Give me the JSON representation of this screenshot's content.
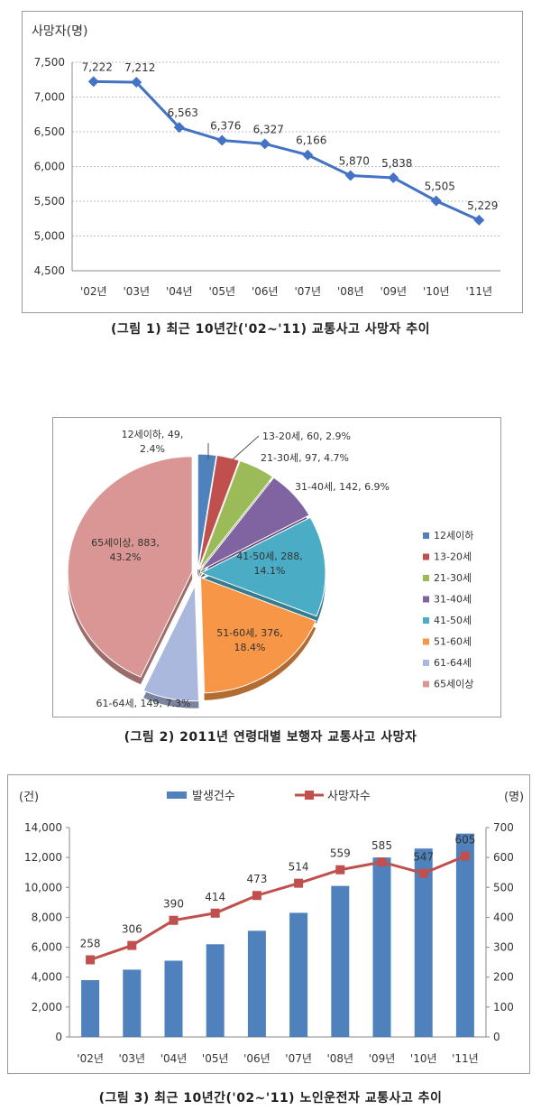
{
  "charts": {
    "fatalities_trend": {
      "caption": "(그림 1)  최근 10년간('02~'11) 교통사고 사망자 추이",
      "unit_label": "사망자(명)"
    },
    "pedestrian_by_age": {
      "caption": "(그림 2)  2011년 연령대별 보행자 교통사고 사망자"
    },
    "elderly_driver": {
      "caption": "(그림 3)  최근 10년간('02~'11) 노인운전자 교통사고 추이",
      "left_unit": "(건)",
      "right_unit": "(명)"
    }
  },
  "colors": {
    "line1": "#4472c4",
    "bar": "#4f81bd",
    "line3": "#c0504d",
    "grid": "#bfbfbf"
  },
  "chart_data": [
    {
      "type": "line",
      "title": "",
      "ylabel": "사망자(명)",
      "categories": [
        "'02년",
        "'03년",
        "'04년",
        "'05년",
        "'06년",
        "'07년",
        "'08년",
        "'09년",
        "'10년",
        "'11년"
      ],
      "values": [
        7222,
        7212,
        6563,
        6376,
        6327,
        6166,
        5870,
        5838,
        5505,
        5229
      ],
      "data_labels": [
        "7,222",
        "7,212",
        "6,563",
        "6,376",
        "6,327",
        "6,166",
        "5,870",
        "5,838",
        "5,505",
        "5,229"
      ],
      "ylim": [
        4500,
        7500
      ],
      "yticks": [
        "4,500",
        "5,000",
        "5,500",
        "6,000",
        "6,500",
        "7,000",
        "7,500"
      ],
      "grid": true
    },
    {
      "type": "pie",
      "legend_position": "right",
      "slices": [
        {
          "label": "12세이하",
          "value": 49,
          "percent": "2.4%",
          "color": "#4f81bd",
          "text": "12세이하, 49, 2.4%"
        },
        {
          "label": "13-20세",
          "value": 60,
          "percent": "2.9%",
          "color": "#c0504d",
          "text": "13-20세, 60, 2.9%"
        },
        {
          "label": "21-30세",
          "value": 97,
          "percent": "4.7%",
          "color": "#9bbb59",
          "text": "21-30세, 97, 4.7%"
        },
        {
          "label": "31-40세",
          "value": 142,
          "percent": "6.9%",
          "color": "#8064a2",
          "text": "31-40세, 142, 6.9%"
        },
        {
          "label": "41-50세",
          "value": 288,
          "percent": "14.1%",
          "color": "#4bacc6",
          "text": "41-50세, 288, 14.1%"
        },
        {
          "label": "51-60세",
          "value": 376,
          "percent": "18.4%",
          "color": "#f79646",
          "text": "51-60세, 376, 18.4%"
        },
        {
          "label": "61-64세",
          "value": 149,
          "percent": "7.3%",
          "color": "#a9b8dc",
          "text": "61-64세, 149, 7.3%"
        },
        {
          "label": "65세이상",
          "value": 883,
          "percent": "43.2%",
          "color": "#d99694",
          "text": "65세이상, 883, 43.2%"
        }
      ]
    },
    {
      "type": "bar",
      "categories": [
        "'02년",
        "'03년",
        "'04년",
        "'05년",
        "'06년",
        "'07년",
        "'08년",
        "'09년",
        "'10년",
        "'11년"
      ],
      "legend_position": "top",
      "grid": false,
      "series": [
        {
          "name": "발생건수",
          "type": "bar",
          "axis": "left",
          "values": [
            3800,
            4500,
            5100,
            6200,
            7100,
            8300,
            10100,
            12000,
            12600,
            13600
          ]
        },
        {
          "name": "사망자수",
          "type": "line",
          "axis": "right",
          "values": [
            258,
            306,
            390,
            414,
            473,
            514,
            559,
            585,
            547,
            605
          ],
          "data_labels": [
            "258",
            "306",
            "390",
            "414",
            "473",
            "514",
            "559",
            "585",
            "547",
            "605"
          ]
        }
      ],
      "ylim_left": [
        0,
        14000
      ],
      "yticks_left": [
        "0",
        "2,000",
        "4,000",
        "6,000",
        "8,000",
        "10,000",
        "12,000",
        "14,000"
      ],
      "ylim_right": [
        0,
        700
      ],
      "yticks_right": [
        "0",
        "100",
        "200",
        "300",
        "400",
        "500",
        "600",
        "700"
      ]
    }
  ]
}
